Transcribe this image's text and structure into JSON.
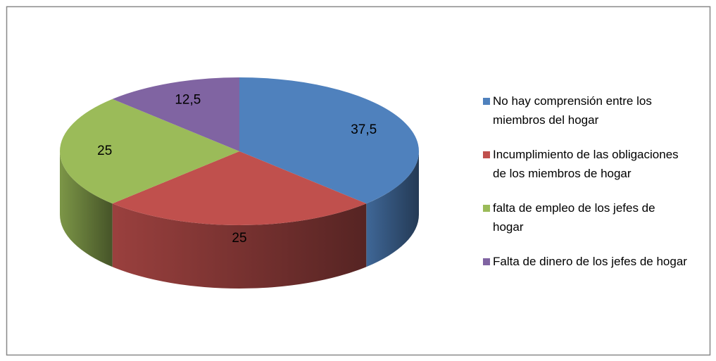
{
  "chart_data": {
    "type": "pie",
    "categories": [
      "No hay comprensión entre los miembros del hogar",
      "Incumplimiento de las obligaciones de los miembros de hogar",
      "falta de empleo de los jefes de hogar",
      "Falta de dinero de los jefes de hogar"
    ],
    "values": [
      37.5,
      25,
      25,
      12.5
    ],
    "value_labels": [
      "37,5",
      "25",
      "25",
      "12,5"
    ],
    "colors": [
      "#4f81bd",
      "#c0504d",
      "#9bbb59",
      "#8064a2"
    ],
    "legend": "right"
  }
}
